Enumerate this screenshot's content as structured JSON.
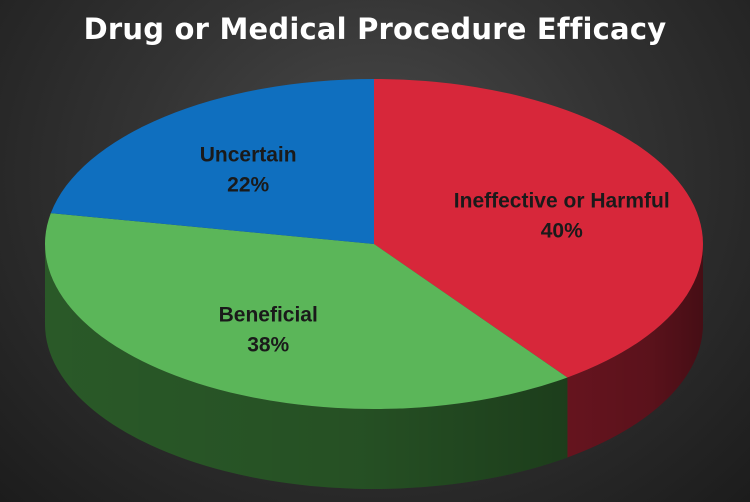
{
  "chart_data": {
    "type": "pie",
    "title": "Drug or Medical Procedure Efficacy",
    "slices": [
      {
        "label": "Ineffective or Harmful",
        "value": 40,
        "value_label": "40%",
        "color": "#d7273a",
        "side_color": "#6b1520"
      },
      {
        "label": "Beneficial",
        "value": 38,
        "value_label": "38%",
        "color": "#5bb659",
        "side_color": "#2c5e2a"
      },
      {
        "label": "Uncertain",
        "value": 22,
        "value_label": "22%",
        "color": "#0f6fbf",
        "side_color": "#0a3f6e"
      }
    ],
    "three_d": true,
    "legend": "none"
  }
}
